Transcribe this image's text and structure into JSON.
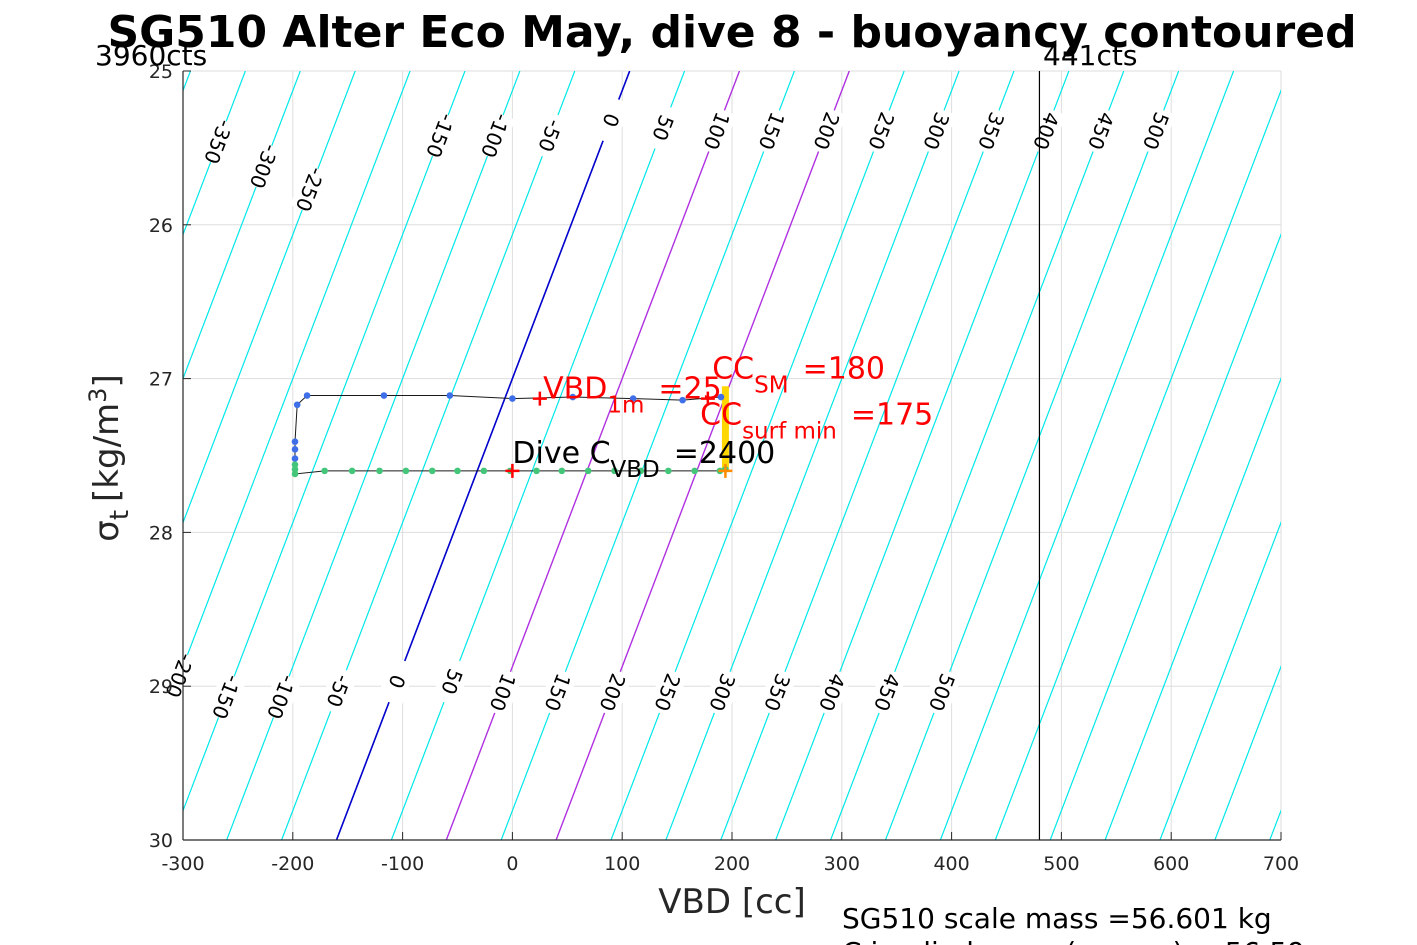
{
  "chart_data": {
    "type": "scatter",
    "title": "SG510 Alter Eco May, dive 8 - buoyancy contoured",
    "xlabel": "VBD [cc]",
    "ylabel_symbol": "σ",
    "ylabel_sub": "t",
    "ylabel_unit_prefix": "[kg/m",
    "ylabel_unit_exp": "3",
    "ylabel_unit_suffix": "]",
    "xlim": [
      -300,
      700
    ],
    "ylim": [
      25,
      30
    ],
    "y_reversed": true,
    "grid": true,
    "xticks": [
      -300,
      -200,
      -100,
      0,
      100,
      200,
      300,
      400,
      500,
      600,
      700
    ],
    "yticks": [
      25,
      26,
      27,
      28,
      29,
      30
    ],
    "cts_left_label": "3960cts",
    "cts_right_label": "441cts",
    "vbd_limit_right": 480,
    "contour_slope_cc_per_sigma": 53.4,
    "contours": [
      -650,
      -600,
      -550,
      -500,
      -450,
      -400,
      -350,
      -300,
      -250,
      -200,
      -150,
      -100,
      -50,
      0,
      50,
      100,
      150,
      200,
      250,
      300,
      350,
      400,
      450,
      500,
      550,
      600,
      650,
      700,
      750,
      800,
      850,
      900,
      950,
      1000
    ],
    "contour_ref_sigma": 27,
    "zero_contour_color": "#0000cc",
    "highlight_contours": [
      100,
      200
    ],
    "highlight_color": "#b030e0",
    "contour_color": "#00e8e8",
    "upper_contour_labels": [
      -350,
      -300,
      -250,
      -150,
      -100,
      -50,
      0,
      50,
      100,
      150,
      200,
      250,
      300,
      350,
      400,
      450,
      500
    ],
    "upper_label_sigma": [
      25.46,
      25.62,
      25.77,
      25.42,
      25.42,
      25.42,
      25.32,
      25.37,
      25.39,
      25.39,
      25.39,
      25.39,
      25.39,
      25.39,
      25.39,
      25.39,
      25.39
    ],
    "lower_contour_labels": [
      -200,
      -150,
      -100,
      -50,
      0,
      50,
      100,
      150,
      200,
      250,
      300,
      350,
      400,
      450,
      500
    ],
    "lower_label_sigma": [
      28.93,
      29.07,
      29.07,
      29.03,
      28.97,
      28.97,
      29.04,
      29.04,
      29.04,
      29.04,
      29.04,
      29.04,
      29.04,
      29.04,
      29.04
    ],
    "dive_points": [
      {
        "x": 190,
        "y": 27.12
      },
      {
        "x": 155,
        "y": 27.14
      },
      {
        "x": 110,
        "y": 27.13
      },
      {
        "x": 55,
        "y": 27.12
      },
      {
        "x": 0,
        "y": 27.13
      },
      {
        "x": -57,
        "y": 27.11
      },
      {
        "x": -117,
        "y": 27.11
      },
      {
        "x": -187,
        "y": 27.11
      },
      {
        "x": -196,
        "y": 27.17
      },
      {
        "x": -198,
        "y": 27.41
      },
      {
        "x": -198,
        "y": 27.46
      },
      {
        "x": -198,
        "y": 27.52
      }
    ],
    "dive_color": "#3f6fe8",
    "climb_points": [
      {
        "x": -198,
        "y": 27.56
      },
      {
        "x": -198,
        "y": 27.59
      },
      {
        "x": -198,
        "y": 27.62
      },
      {
        "x": -171,
        "y": 27.6
      },
      {
        "x": -146,
        "y": 27.6
      },
      {
        "x": -121,
        "y": 27.6
      },
      {
        "x": -97,
        "y": 27.6
      },
      {
        "x": -73,
        "y": 27.6
      },
      {
        "x": -50,
        "y": 27.6
      },
      {
        "x": -26,
        "y": 27.6
      },
      {
        "x": -2,
        "y": 27.6
      },
      {
        "x": 22,
        "y": 27.6
      },
      {
        "x": 45,
        "y": 27.6
      },
      {
        "x": 69,
        "y": 27.6
      },
      {
        "x": 93,
        "y": 27.6
      },
      {
        "x": 117,
        "y": 27.6
      },
      {
        "x": 142,
        "y": 27.6
      },
      {
        "x": 166,
        "y": 27.6
      },
      {
        "x": 189,
        "y": 27.6
      },
      {
        "x": 194,
        "y": 27.59
      }
    ],
    "climb_color": "#44c67a",
    "surface_bar": {
      "x": 194,
      "y1": 27.05,
      "y2": 27.6,
      "color": "#ffd700"
    },
    "markers": [
      {
        "x": 25,
        "y": 27.13,
        "color": "#ff0000"
      },
      {
        "x": 178,
        "y": 27.13,
        "color": "#ff0000"
      },
      {
        "x": 0,
        "y": 27.6,
        "color": "#ff0000"
      },
      {
        "x": 194,
        "y": 27.6,
        "color": "#ff8c00"
      }
    ],
    "annotations": [
      {
        "id": "vbd1m",
        "x": 28,
        "y": 27.13,
        "base": "VBD",
        "sub": "1m",
        "suffix": "=25",
        "color": "#ff0000"
      },
      {
        "id": "ccsm",
        "x": 182,
        "y": 27.0,
        "base": "CC",
        "sub": "SM",
        "suffix": "=180",
        "color": "#ff0000"
      },
      {
        "id": "ccsurf",
        "x": 171,
        "y": 27.3,
        "base": "CC",
        "sub": "surf min",
        "suffix": "=175",
        "color": "#ff0000"
      },
      {
        "id": "divec",
        "x": 0,
        "y": 27.55,
        "base": "Dive C",
        "sub": "VBD",
        "suffix": "=2400",
        "color": "#000000"
      }
    ],
    "footer_lines": [
      "SG510 scale mass =56.601 kg",
      "C      implied mass (approx) = 56.59"
    ]
  }
}
